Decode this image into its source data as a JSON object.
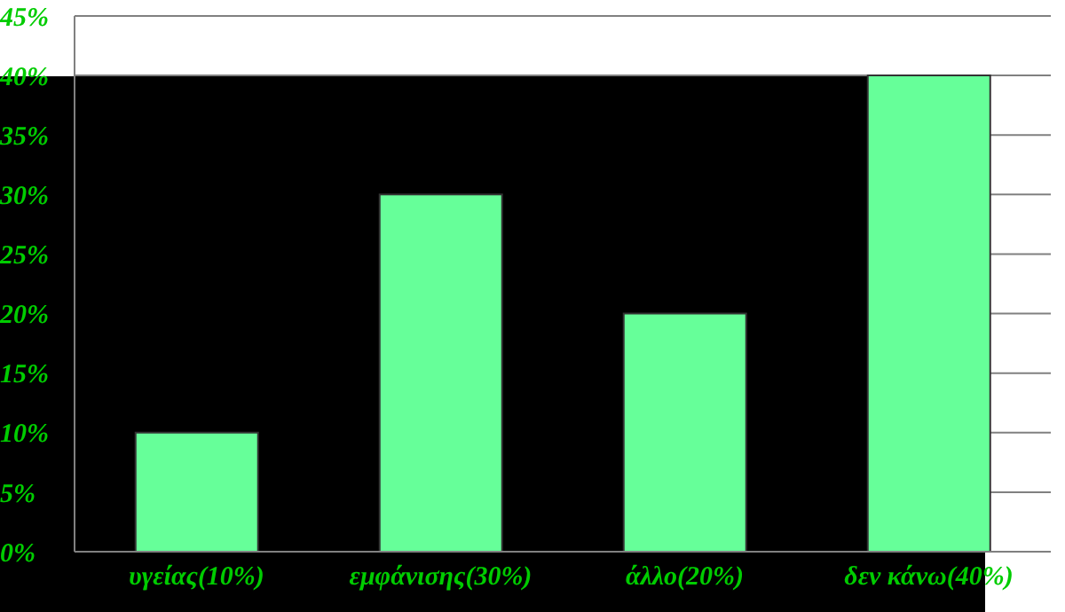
{
  "chart_data": {
    "type": "bar",
    "categories": [
      "υγείας(10%)",
      "εμφάνισης(30%)",
      "άλλο(20%)",
      "δεν κάνω(40%)"
    ],
    "values": [
      10,
      30,
      20,
      40
    ],
    "color": "#66ff99",
    "ylim": [
      0,
      45
    ],
    "yticks": [
      {
        "value": 0,
        "label": "0%"
      },
      {
        "value": 5,
        "label": "5%"
      },
      {
        "value": 10,
        "label": "10%"
      },
      {
        "value": 15,
        "label": "15%"
      },
      {
        "value": 20,
        "label": "20%"
      },
      {
        "value": 25,
        "label": "25%"
      },
      {
        "value": 30,
        "label": "30%"
      },
      {
        "value": 35,
        "label": "35%"
      },
      {
        "value": 40,
        "label": "40%"
      },
      {
        "value": 45,
        "label": "45%"
      }
    ],
    "grid": "y"
  }
}
